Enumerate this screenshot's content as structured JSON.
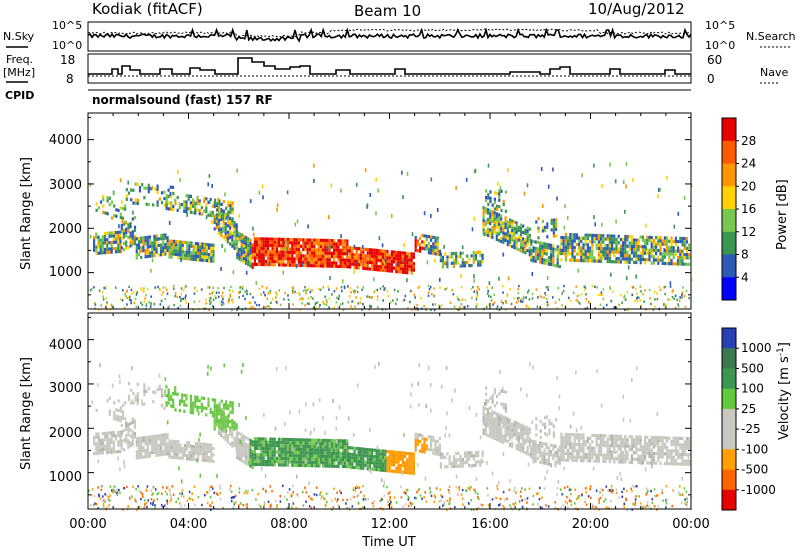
{
  "header": {
    "station": "Kodiak (fitACF)",
    "beam": "Beam 10",
    "date": "10/Aug/2012",
    "program": "normalsound (fast) 157 RF"
  },
  "left_labels": {
    "nsky": "N.Sky",
    "freq_line1": "Freq.",
    "freq_line2": "[MHz]",
    "cpid": "CPID"
  },
  "right_labels": {
    "nsearch": "N.Search",
    "nave": "Nave"
  },
  "chart_data": [
    {
      "type": "line",
      "name": "noise-panel",
      "y_left_ticks": [
        "10^5",
        "10^0"
      ],
      "y_right_ticks": [
        "10^5",
        "10^0"
      ],
      "log_scale": true,
      "series": [
        {
          "name": "N.Sky",
          "style": "solid"
        },
        {
          "name": "N.Search",
          "style": "dotted"
        }
      ]
    },
    {
      "type": "line",
      "name": "frequency-panel",
      "y_left_ticks": [
        "18",
        "8"
      ],
      "y_right_ticks": [
        "60",
        "0"
      ],
      "series": [
        {
          "name": "Freq.",
          "units": "MHz",
          "style": "solid"
        },
        {
          "name": "Nave",
          "style": "dotted"
        }
      ]
    },
    {
      "type": "heatmap",
      "name": "power",
      "ylabel": "Slant Range [km]",
      "y_ticks": [
        "1000",
        "2000",
        "3000",
        "4000"
      ],
      "ylim": [
        180,
        4600
      ],
      "colorbar_label": "Power [dB]",
      "colorbar_ticks": [
        "28",
        "24",
        "20",
        "16",
        "12",
        "8",
        "4"
      ],
      "colorbar_colors": [
        "#e60000",
        "#ff5a00",
        "#ff9600",
        "#ffd200",
        "#78c850",
        "#3c9650",
        "#2d5ab4",
        "#0000ff"
      ]
    },
    {
      "type": "heatmap",
      "name": "velocity",
      "ylabel": "Slant Range [km]",
      "y_ticks": [
        "1000",
        "2000",
        "3000",
        "4000"
      ],
      "ylim": [
        180,
        4600
      ],
      "colorbar_label": "Velocity  [m s",
      "colorbar_label_sup": "-1",
      "colorbar_label_end": "]",
      "colorbar_ticks": [
        "1000",
        "500",
        "100",
        "25",
        "-25",
        "-100",
        "-500",
        "-1000"
      ],
      "colorbar_colors": [
        "#2840b4",
        "#3c7850",
        "#3c9650",
        "#64c83c",
        "#c8c8c0",
        "#c8c8c0",
        "#ffa000",
        "#ff6400",
        "#e60000"
      ]
    }
  ],
  "x_axis": {
    "label": "Time UT",
    "ticks": [
      "00:00",
      "04:00",
      "08:00",
      "12:00",
      "16:00",
      "20:00",
      "00:00"
    ],
    "range_hours": [
      0,
      24
    ]
  }
}
